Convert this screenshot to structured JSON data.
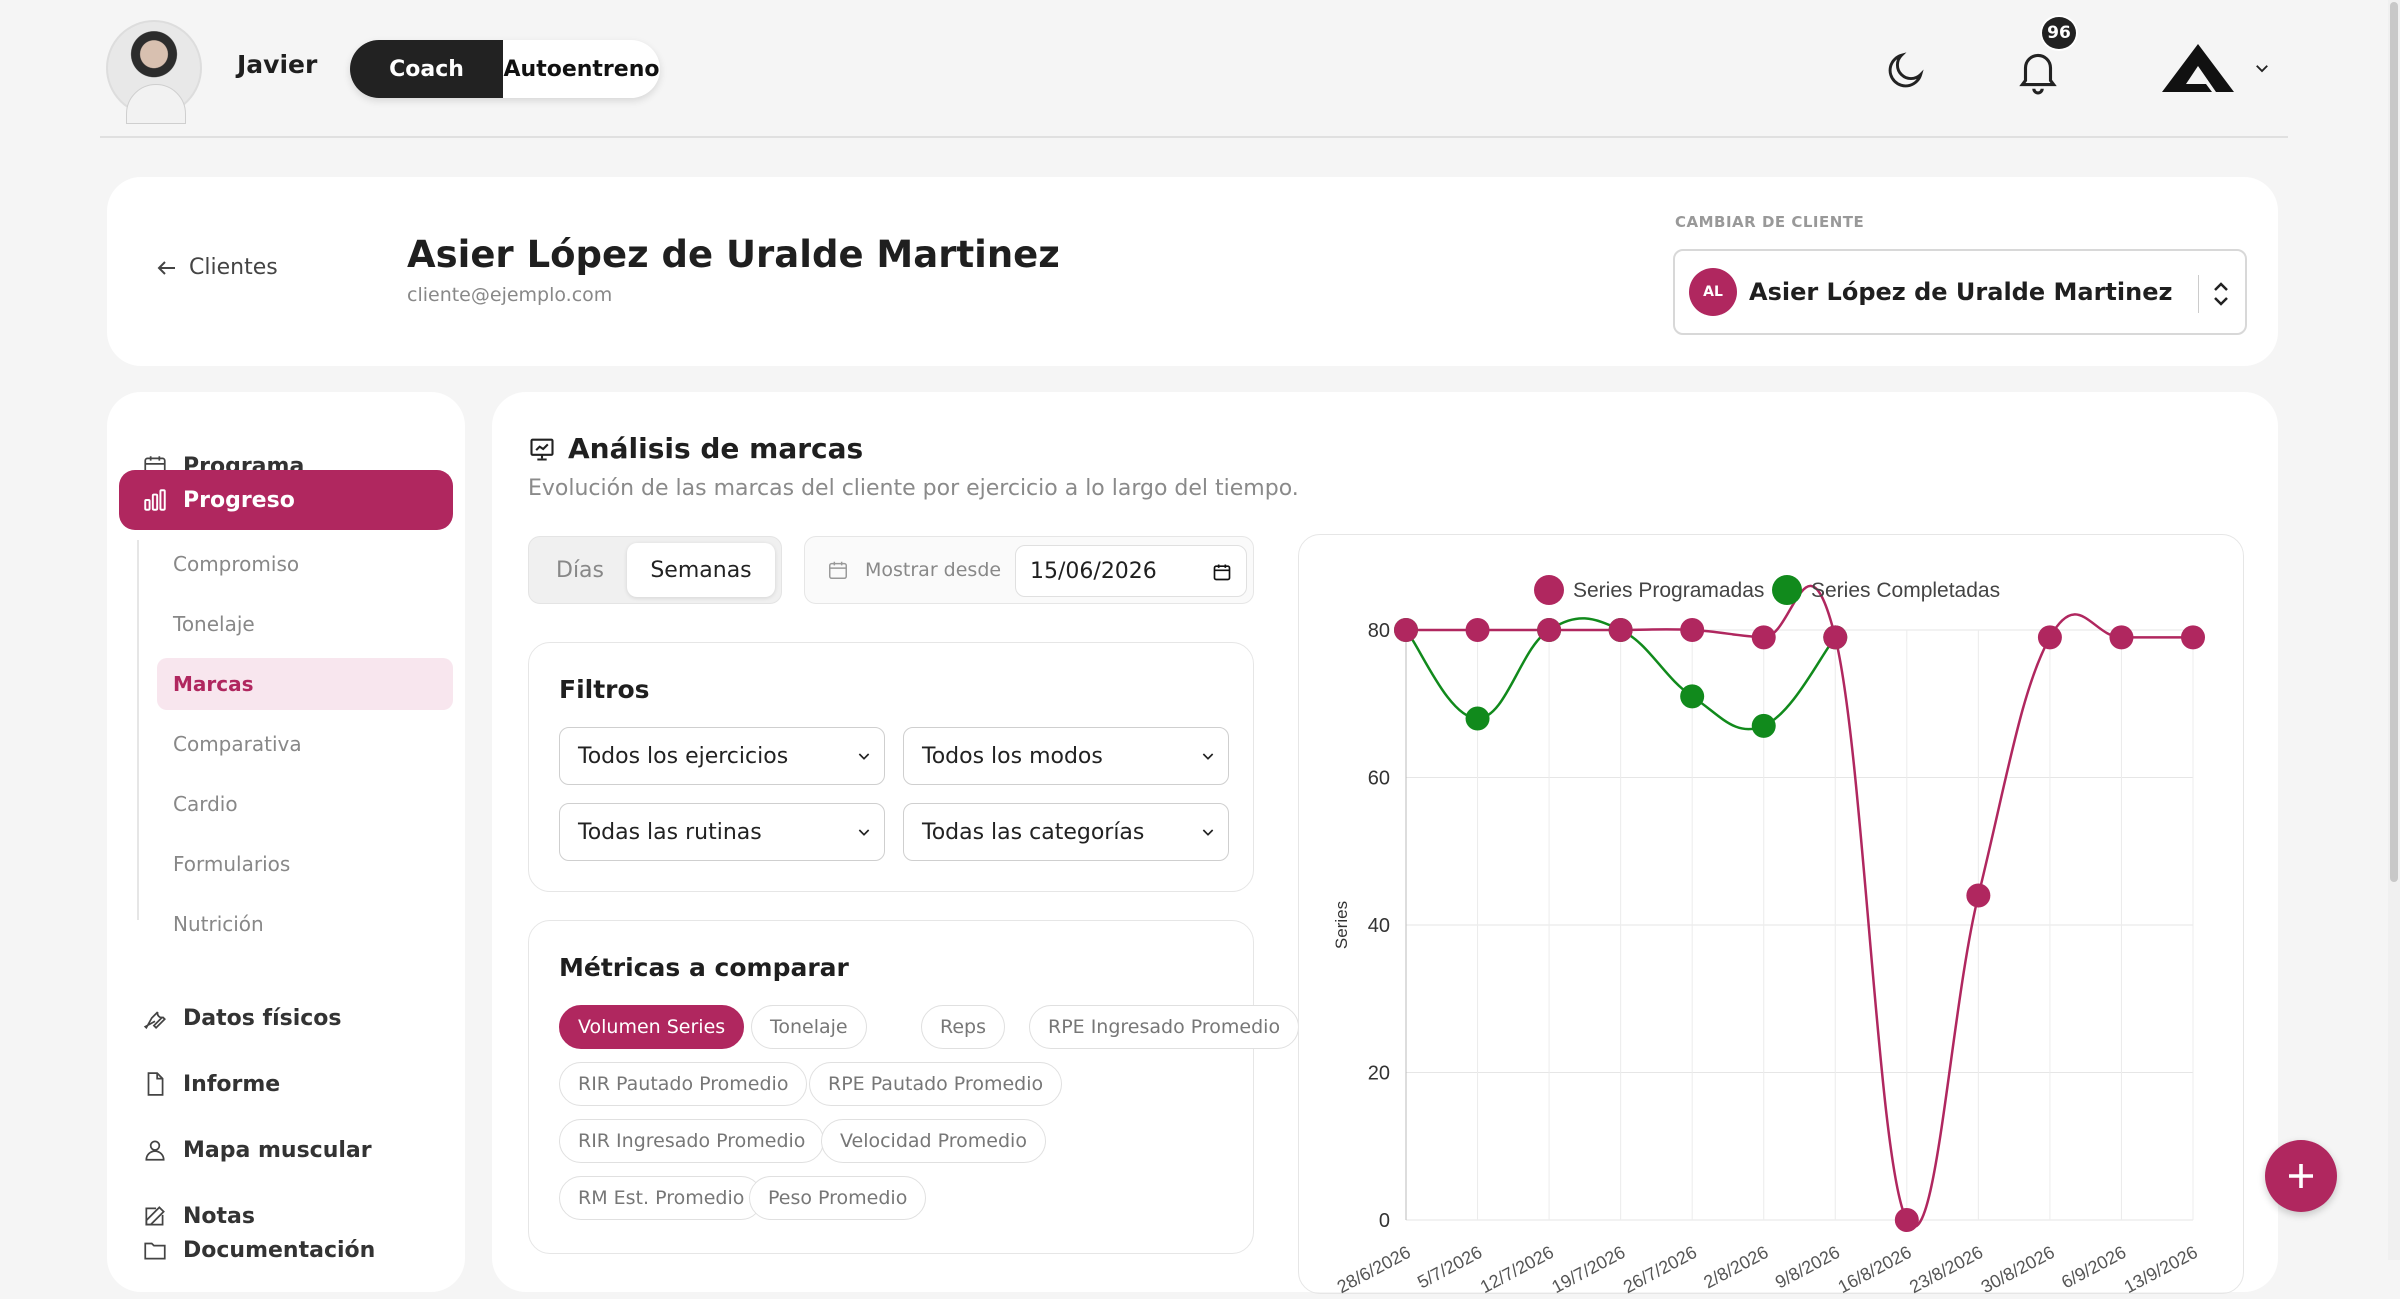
{
  "header": {
    "user_name": "Javier",
    "mode_active": "Coach",
    "mode_inactive": "Autoentreno",
    "notifications_count": "96",
    "logo_icon": "brand-a-logo-icon",
    "moon_icon": "moon-icon",
    "bell_icon": "bell-icon"
  },
  "client": {
    "back_label": "Clientes",
    "name": "Asier López de Uralde Martinez",
    "email": "cliente@ejemplo.com",
    "switch_label": "CAMBIAR DE CLIENTE",
    "selected_initials": "AL",
    "selected_name": "Asier López de Uralde Martinez"
  },
  "sidebar": {
    "items": [
      {
        "label": "Programa",
        "icon": "calendar-icon"
      },
      {
        "label": "Progreso",
        "icon": "bar-chart-icon"
      },
      {
        "label": "Datos físicos",
        "icon": "wrench-icon"
      },
      {
        "label": "Informe",
        "icon": "document-icon"
      },
      {
        "label": "Mapa muscular",
        "icon": "person-icon"
      },
      {
        "label": "Notas",
        "icon": "edit-icon"
      },
      {
        "label": "Documentación",
        "icon": "folder-icon"
      }
    ],
    "sub_items": [
      "Compromiso",
      "Tonelaje",
      "Marcas",
      "Comparativa",
      "Cardio",
      "Formularios",
      "Nutrición"
    ]
  },
  "main": {
    "title": "Análisis de marcas",
    "subtitle": "Evolución de las marcas del cliente por ejercicio a lo largo del tiempo.",
    "granularity": [
      "Días",
      "Semanas"
    ],
    "date_label": "Mostrar desde",
    "date_value": "15/06/2026",
    "filters_title": "Filtros",
    "filters": [
      "Todos los ejercicios",
      "Todos los modos",
      "Todas las rutinas",
      "Todas las categorías"
    ],
    "metrics_title": "Métricas a comparar",
    "metrics": [
      "Volumen Series",
      "Tonelaje",
      "Reps",
      "RPE Ingresado Promedio",
      "RIR Pautado Promedio",
      "RPE Pautado Promedio",
      "RIR Ingresado Promedio",
      "Velocidad Promedio",
      "RM Est. Promedio",
      "Peso Promedio"
    ]
  },
  "chart_data": {
    "type": "line",
    "ylabel": "Series",
    "ylim": [
      0,
      80
    ],
    "yticks": [
      0,
      20,
      40,
      60,
      80
    ],
    "x": [
      "28/6/2026",
      "5/7/2026",
      "12/7/2026",
      "19/7/2026",
      "26/7/2026",
      "2/8/2026",
      "9/8/2026",
      "16/8/2026",
      "23/8/2026",
      "30/8/2026",
      "6/9/2026",
      "13/9/2026"
    ],
    "series": [
      {
        "name": "Series Programadas",
        "color": "#b0275f",
        "values": [
          80,
          80,
          80,
          80,
          80,
          79,
          79,
          0,
          44,
          79,
          79,
          79
        ]
      },
      {
        "name": "Series Completadas",
        "color": "#118a1c",
        "values": [
          80,
          68,
          80,
          80,
          71,
          67,
          79,
          null,
          null,
          null,
          null,
          null
        ]
      }
    ],
    "legend": "top",
    "grid": true
  },
  "colors": {
    "accent": "#b0275f",
    "completed": "#118a1c"
  }
}
